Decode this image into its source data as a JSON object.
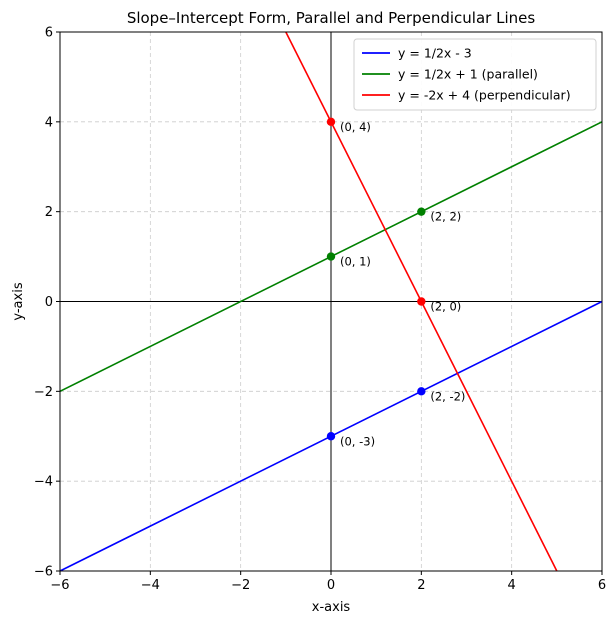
{
  "chart_data": {
    "type": "line",
    "title": "Slope–Intercept Form, Parallel and Perpendicular Lines",
    "xlabel": "x-axis",
    "ylabel": "y-axis",
    "xlim": [
      -6,
      6
    ],
    "ylim": [
      -6,
      6
    ],
    "xticks": [
      -6,
      -4,
      -2,
      0,
      2,
      4,
      6
    ],
    "yticks": [
      -6,
      -4,
      -2,
      0,
      2,
      4,
      6
    ],
    "xtick_labels": [
      "−6",
      "−4",
      "−2",
      "0",
      "2",
      "4",
      "6"
    ],
    "ytick_labels": [
      "−6",
      "−4",
      "−2",
      "0",
      "2",
      "4",
      "6"
    ],
    "grid": true,
    "legend_position": "top-right",
    "series": [
      {
        "name": "y = 1/2x - 3",
        "color": "#0000ff",
        "slope": 0.5,
        "intercept": -3,
        "x": [
          -6,
          6
        ],
        "y": [
          -6,
          0
        ],
        "points": [
          {
            "x": 0,
            "y": -3,
            "label": "(0, -3)"
          },
          {
            "x": 2,
            "y": -2,
            "label": "(2, -2)"
          }
        ]
      },
      {
        "name": "y = 1/2x + 1 (parallel)",
        "color": "#008000",
        "slope": 0.5,
        "intercept": 1,
        "x": [
          -6,
          6
        ],
        "y": [
          -2,
          4
        ],
        "points": [
          {
            "x": 0,
            "y": 1,
            "label": "(0, 1)"
          },
          {
            "x": 2,
            "y": 2,
            "label": "(2, 2)"
          }
        ]
      },
      {
        "name": "y = -2x + 4 (perpendicular)",
        "color": "#ff0000",
        "slope": -2,
        "intercept": 4,
        "x": [
          -1,
          5
        ],
        "y": [
          6,
          -6
        ],
        "points": [
          {
            "x": 0,
            "y": 4,
            "label": "(0, 4)"
          },
          {
            "x": 2,
            "y": 0,
            "label": "(2, 0)"
          }
        ]
      }
    ]
  }
}
